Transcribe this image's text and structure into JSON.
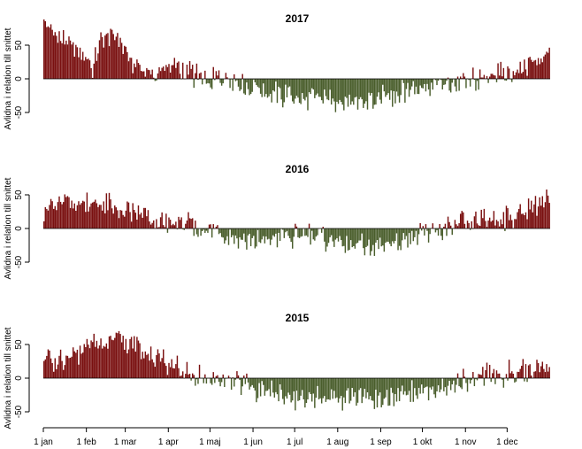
{
  "chart_data": {
    "type": "bar",
    "ylabel": "Avlidna i relation till snittet",
    "x_tick_labels": [
      "1 jan",
      "1 feb",
      "1 mar",
      "1 apr",
      "1 maj",
      "1 jun",
      "1 jul",
      "1 aug",
      "1 sep",
      "1 okt",
      "1 nov",
      "1 dec"
    ],
    "y_ticks": [
      -50,
      0,
      50
    ],
    "ylim": [
      -60,
      95
    ],
    "colors": {
      "positive": "#7a1010",
      "negative": "#4a5e2c"
    },
    "panels": [
      {
        "title": "2017",
        "points": [
          [
            0,
            92
          ],
          [
            5,
            72
          ],
          [
            10,
            65
          ],
          [
            15,
            58
          ],
          [
            20,
            48
          ],
          [
            25,
            45
          ],
          [
            31,
            30
          ],
          [
            35,
            20
          ],
          [
            40,
            55
          ],
          [
            46,
            68
          ],
          [
            52,
            62
          ],
          [
            58,
            48
          ],
          [
            64,
            22
          ],
          [
            72,
            14
          ],
          [
            80,
            6
          ],
          [
            90,
            20
          ],
          [
            100,
            15
          ],
          [
            110,
            2
          ],
          [
            120,
            -6
          ],
          [
            130,
            4
          ],
          [
            140,
            -6
          ],
          [
            150,
            -12
          ],
          [
            160,
            -18
          ],
          [
            170,
            -25
          ],
          [
            180,
            -28
          ],
          [
            190,
            -30
          ],
          [
            200,
            -32
          ],
          [
            210,
            -33
          ],
          [
            220,
            -35
          ],
          [
            230,
            -34
          ],
          [
            240,
            -30
          ],
          [
            250,
            -22
          ],
          [
            260,
            -18
          ],
          [
            270,
            -12
          ],
          [
            280,
            -8
          ],
          [
            290,
            -10
          ],
          [
            300,
            -5
          ],
          [
            310,
            0
          ],
          [
            320,
            5
          ],
          [
            330,
            8
          ],
          [
            340,
            12
          ],
          [
            350,
            20
          ],
          [
            356,
            30
          ],
          [
            360,
            40
          ],
          [
            364,
            50
          ]
        ]
      },
      {
        "title": "2016",
        "points": [
          [
            0,
            30
          ],
          [
            10,
            35
          ],
          [
            20,
            40
          ],
          [
            31,
            40
          ],
          [
            40,
            35
          ],
          [
            50,
            30
          ],
          [
            60,
            25
          ],
          [
            70,
            22
          ],
          [
            80,
            12
          ],
          [
            90,
            8
          ],
          [
            100,
            8
          ],
          [
            110,
            0
          ],
          [
            120,
            -5
          ],
          [
            130,
            -10
          ],
          [
            140,
            -15
          ],
          [
            150,
            -20
          ],
          [
            160,
            -18
          ],
          [
            170,
            -15
          ],
          [
            180,
            -12
          ],
          [
            190,
            -10
          ],
          [
            200,
            -14
          ],
          [
            210,
            -18
          ],
          [
            220,
            -25
          ],
          [
            230,
            -28
          ],
          [
            240,
            -30
          ],
          [
            250,
            -20
          ],
          [
            260,
            -15
          ],
          [
            270,
            -10
          ],
          [
            280,
            -5
          ],
          [
            290,
            -2
          ],
          [
            300,
            5
          ],
          [
            310,
            10
          ],
          [
            320,
            12
          ],
          [
            330,
            15
          ],
          [
            340,
            20
          ],
          [
            350,
            28
          ],
          [
            358,
            35
          ],
          [
            364,
            42
          ]
        ]
      },
      {
        "title": "2015",
        "points": [
          [
            0,
            30
          ],
          [
            10,
            28
          ],
          [
            20,
            35
          ],
          [
            31,
            45
          ],
          [
            40,
            55
          ],
          [
            50,
            58
          ],
          [
            60,
            50
          ],
          [
            70,
            40
          ],
          [
            80,
            28
          ],
          [
            90,
            22
          ],
          [
            100,
            12
          ],
          [
            110,
            2
          ],
          [
            120,
            -5
          ],
          [
            130,
            -8
          ],
          [
            140,
            -10
          ],
          [
            150,
            -15
          ],
          [
            160,
            -20
          ],
          [
            170,
            -25
          ],
          [
            180,
            -28
          ],
          [
            190,
            -30
          ],
          [
            200,
            -32
          ],
          [
            210,
            -30
          ],
          [
            220,
            -28
          ],
          [
            230,
            -30
          ],
          [
            240,
            -32
          ],
          [
            250,
            -25
          ],
          [
            260,
            -20
          ],
          [
            270,
            -18
          ],
          [
            280,
            -15
          ],
          [
            290,
            -10
          ],
          [
            300,
            -5
          ],
          [
            310,
            0
          ],
          [
            320,
            2
          ],
          [
            330,
            5
          ],
          [
            340,
            8
          ],
          [
            350,
            12
          ],
          [
            358,
            18
          ],
          [
            364,
            22
          ]
        ]
      }
    ]
  }
}
